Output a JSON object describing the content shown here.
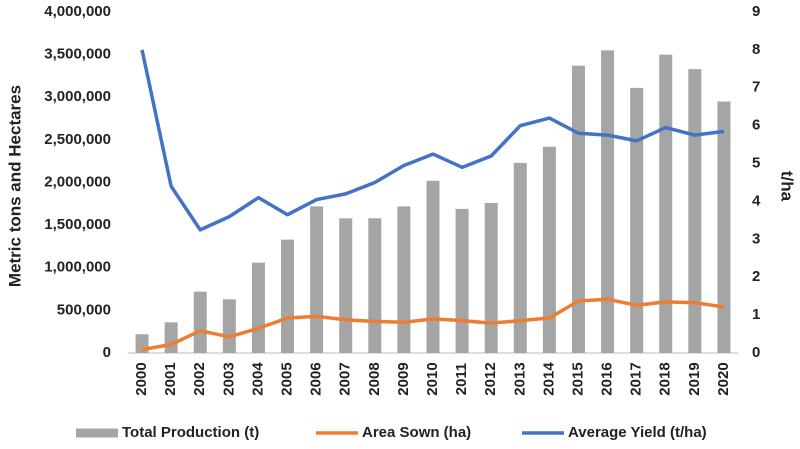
{
  "chart_data": {
    "type": "bar",
    "categories": [
      "2000",
      "2001",
      "2002",
      "2003",
      "2004",
      "2005",
      "2006",
      "2007",
      "2008",
      "2009",
      "2010",
      "2011",
      "2012",
      "2013",
      "2014",
      "2015",
      "2016",
      "2017",
      "2018",
      "2019",
      "2020"
    ],
    "series": [
      {
        "name": "Total Production (t)",
        "type": "bar",
        "color": "#a5a5a5",
        "values": [
          220000,
          360000,
          720000,
          630000,
          1060000,
          1330000,
          1720000,
          1580000,
          1580000,
          1720000,
          2020000,
          1690000,
          1760000,
          2230000,
          2420000,
          3370000,
          3550000,
          3110000,
          3500000,
          3330000,
          2950000
        ]
      },
      {
        "name": "Area Sown (ha)",
        "type": "line",
        "color": "#ed7d31",
        "values": [
          40000,
          100000,
          260000,
          190000,
          290000,
          410000,
          430000,
          390000,
          370000,
          360000,
          400000,
          380000,
          350000,
          380000,
          410000,
          610000,
          630000,
          560000,
          600000,
          590000,
          540000
        ]
      },
      {
        "name": "Average Yield (t/ha)",
        "type": "line",
        "axis": "y2",
        "color": "#4472c4",
        "values": [
          8.0,
          4.4,
          3.25,
          3.6,
          4.1,
          3.65,
          4.05,
          4.2,
          4.5,
          4.95,
          5.25,
          4.9,
          5.2,
          6.0,
          6.2,
          5.8,
          5.75,
          5.6,
          5.95,
          5.75,
          5.85
        ]
      }
    ],
    "y_label": "Metric tons and Hectares",
    "y2_label": "t/ha",
    "ylim": [
      0,
      4000000
    ],
    "yticks": [
      0,
      {
        "value": 500000,
        "label": "500,000"
      },
      {
        "value": 1000000,
        "label": "1,000,000"
      },
      {
        "value": 1500000,
        "label": "1,500,000"
      },
      {
        "value": 2000000,
        "label": "2,000,000"
      },
      {
        "value": 2500000,
        "label": "2,500,000"
      },
      {
        "value": 3000000,
        "label": "3,000,000"
      },
      {
        "value": 3500000,
        "label": "3,500,000"
      },
      {
        "value": 4000000,
        "label": "4,000,000"
      }
    ],
    "y2lim": [
      0,
      9
    ],
    "y2ticks": [
      0,
      1,
      2,
      3,
      4,
      5,
      6,
      7,
      8,
      9
    ],
    "legend": "bottom"
  }
}
